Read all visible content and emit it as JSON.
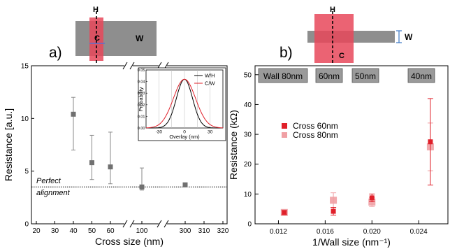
{
  "colors": {
    "gray_marker": "#707070",
    "cross_red": "#e0202a",
    "cross_pink": "#f0a0a4",
    "schematic_gray": "#8e8e8e",
    "schematic_red": "#e8485a",
    "ticks": "#000000"
  },
  "panel_a": {
    "label": "a)",
    "schematic": {
      "label_h": "H",
      "label_c": "C",
      "label_w": "W"
    },
    "perfect_label_line1": "Perfect",
    "perfect_label_line2": "alignment",
    "inset": {
      "ylabel": "Probability",
      "xlabel": "Overlay (nm)",
      "legend": [
        "W/H",
        "C/W"
      ]
    }
  },
  "panel_b": {
    "label": "b)",
    "schematic": {
      "label_h": "H",
      "label_c": "C",
      "label_w": "W"
    },
    "wall_boxes": [
      "Wall 80nm",
      "60nm",
      "50nm",
      "40nm"
    ],
    "legend": [
      "Cross 60nm",
      "Cross 80nm"
    ]
  },
  "chart_data": [
    {
      "type": "scatter",
      "panel": "a",
      "xlabel": "Cross size (nm)",
      "ylabel": "Resistance [a.u.]",
      "x_axis_broken": true,
      "x_tick_labels": [
        "20",
        "30",
        "40",
        "50",
        "60",
        "100",
        "300",
        "310",
        "320"
      ],
      "y_tick_labels": [
        "0",
        "5",
        "10",
        "15"
      ],
      "ylim": [
        0,
        15
      ],
      "series": [
        {
          "x": [
            40,
            50,
            60,
            100,
            300
          ],
          "y": [
            10.4,
            5.8,
            5.4,
            3.5,
            3.7
          ],
          "err_low": [
            3.4,
            1.6,
            1.6,
            0.3,
            0.15
          ],
          "err_high": [
            1.6,
            2.6,
            3.3,
            1.8,
            0.15
          ]
        }
      ],
      "reference_line": {
        "y": 3.5,
        "style": "dotted"
      }
    },
    {
      "type": "line",
      "panel": "a-inset",
      "xlabel": "Overlay (nm)",
      "ylabel": "Probability",
      "x_tick_labels": [
        "-30",
        "0",
        "30"
      ],
      "y_tick_labels": [
        "0.00",
        "0.01",
        "0.02",
        "0.03",
        "0.04",
        "0.05"
      ],
      "xlim": [
        -45,
        45
      ],
      "ylim": [
        0,
        0.05
      ],
      "series": [
        {
          "name": "W/H",
          "mean": 0,
          "sigma": 9.5,
          "peak": 0.042
        },
        {
          "name": "C/W",
          "mean": 0,
          "sigma": 13,
          "peak": 0.042
        }
      ]
    },
    {
      "type": "scatter",
      "panel": "b",
      "xlabel": "1/Wall size (nm⁻¹)",
      "ylabel": "Resistance (kΩ)",
      "x_tick_labels": [
        "0.012",
        "0.016",
        "0.020",
        "0.024"
      ],
      "y_tick_labels": [
        "0",
        "10",
        "20",
        "30",
        "40",
        "50"
      ],
      "xlim": [
        0.01,
        0.0265
      ],
      "ylim": [
        0,
        53
      ],
      "series": [
        {
          "name": "Cross 60nm",
          "x": [
            0.0125,
            0.0167,
            0.02,
            0.025
          ],
          "y": [
            3.8,
            4.2,
            8.7,
            27.5
          ],
          "err_low": [
            0.6,
            1.3,
            1.3,
            14.5
          ],
          "err_high": [
            0.6,
            1.3,
            1.3,
            14.5
          ]
        },
        {
          "name": "Cross 80nm",
          "x": [
            0.0125,
            0.0167,
            0.02,
            0.025
          ],
          "y": [
            3.8,
            7.9,
            7.3,
            25.8
          ],
          "err_low": [
            1.0,
            2.5,
            1.5,
            8.0
          ],
          "err_high": [
            1.0,
            2.5,
            1.5,
            8.0
          ]
        }
      ]
    }
  ]
}
